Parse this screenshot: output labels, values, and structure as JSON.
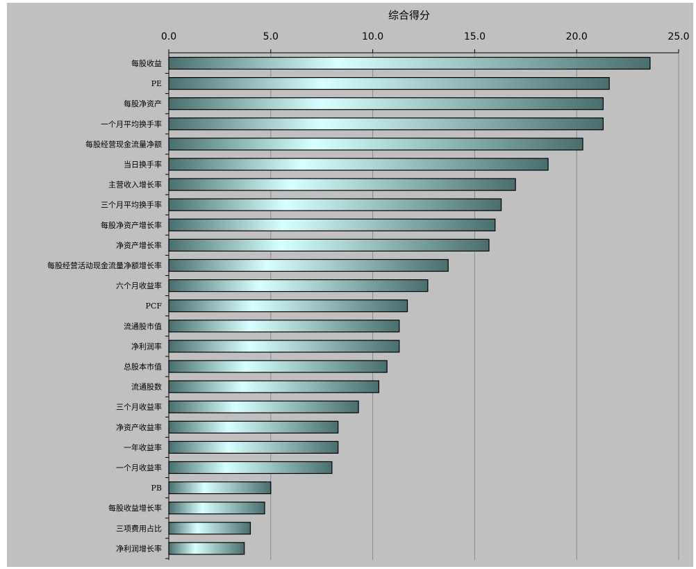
{
  "chart_data": {
    "type": "bar",
    "orientation": "horizontal",
    "title": "",
    "xlabel": "综合得分",
    "ylabel": "",
    "xlim": [
      0,
      25
    ],
    "x_ticks": [
      "0.0",
      "5.0",
      "10.0",
      "15.0",
      "20.0",
      "25.0"
    ],
    "x_axis_position": "top",
    "grid": "vertical",
    "legend": "none",
    "categories": [
      "每股收益",
      "PE",
      "每股净资产",
      "一个月平均换手率",
      "每股经营现金流量净额",
      "当日换手率",
      "主营收入增长率",
      "三个月平均换手率",
      "每股净资产增长率",
      "净资产增长率",
      "每股经营活动现金流量净额增长率",
      "六个月收益率",
      "PCF",
      "流通股市值",
      "净利润率",
      "总股本市值",
      "流通股数",
      "三个月收益率",
      "净资产收益率",
      "一年收益率",
      "一个月收益率",
      "PB",
      "每股收益增长率",
      "三项费用占比",
      "净利润增长率"
    ],
    "values": [
      23.6,
      21.6,
      21.3,
      21.3,
      20.3,
      18.6,
      17.0,
      16.3,
      16.0,
      15.7,
      13.7,
      12.7,
      11.7,
      11.3,
      11.3,
      10.7,
      10.3,
      9.3,
      8.3,
      8.3,
      8.0,
      5.0,
      4.7,
      4.0,
      3.7
    ],
    "colors": {
      "plot_background": "#c0c0c0",
      "outer_background": "#ffffff",
      "bar_dark": "#4a6e6e",
      "bar_light": "#d8ffff",
      "bar_border": "#000000",
      "gridline": "#8a8a8a"
    }
  }
}
